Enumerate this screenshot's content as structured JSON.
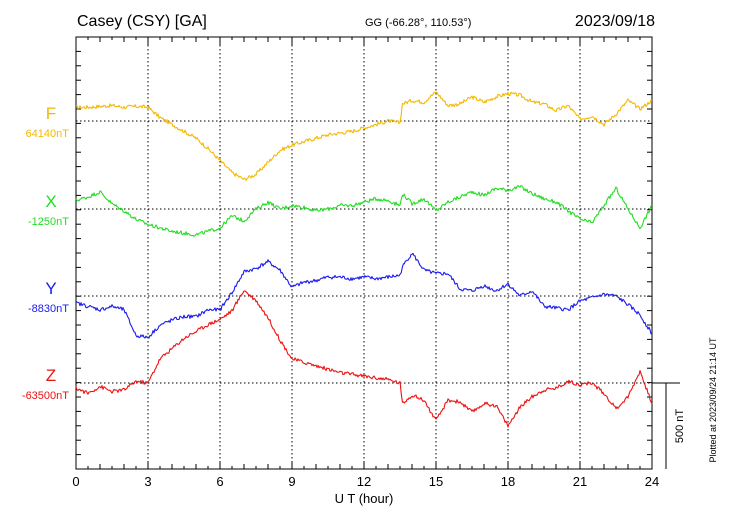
{
  "chart_data": {
    "type": "line",
    "station": "Casey (CSY)  [GA]",
    "coords": "GG (-66.28°, 110.53°)",
    "date": "2023/09/18",
    "xlabel": "U T (hour)",
    "xlim": [
      0,
      24
    ],
    "x_ticks": [
      "0",
      "3",
      "6",
      "9",
      "12",
      "15",
      "18",
      "21",
      "24"
    ],
    "scale_bar": {
      "label": "500 nT",
      "value_nT": 500
    },
    "footer": "Plotted at 2023/09/24 21:14 UT",
    "colors": {
      "F": "#f5b800",
      "X": "#22dd22",
      "Y": "#1a1aee",
      "Z": "#ee1111"
    },
    "series": [
      {
        "name": "F",
        "baseline_label": "64140nT",
        "baseline_nT": 64140,
        "hours": [
          0,
          0.5,
          1,
          1.5,
          2,
          2.5,
          3,
          3.5,
          4,
          4.5,
          5,
          5.5,
          6,
          6.5,
          7,
          7.5,
          8,
          8.5,
          9,
          9.5,
          10,
          10.5,
          11,
          11.5,
          12,
          12.5,
          13,
          13.5,
          13.6,
          14,
          14.5,
          15,
          15.5,
          16,
          16.5,
          17,
          17.5,
          18,
          18.5,
          19,
          19.5,
          20,
          20.5,
          21,
          21.5,
          22,
          22.5,
          23,
          23.5,
          24
        ],
        "values": [
          80,
          80,
          85,
          90,
          80,
          85,
          80,
          20,
          -20,
          -60,
          -100,
          -160,
          -230,
          -300,
          -340,
          -310,
          -240,
          -170,
          -140,
          -120,
          -100,
          -80,
          -70,
          -60,
          -40,
          -20,
          0,
          -10,
          100,
          120,
          110,
          170,
          90,
          100,
          140,
          110,
          140,
          160,
          150,
          110,
          100,
          60,
          90,
          10,
          30,
          -20,
          40,
          120,
          70,
          120
        ]
      },
      {
        "name": "X",
        "baseline_label": "-1250nT",
        "baseline_nT": -1250,
        "hours": [
          0,
          0.5,
          1,
          1.5,
          2,
          2.5,
          3,
          3.5,
          4,
          4.5,
          5,
          5.5,
          6,
          6.5,
          7,
          7.5,
          8,
          8.5,
          9,
          9.5,
          10,
          10.5,
          11,
          11.5,
          12,
          12.5,
          13,
          13.5,
          13.6,
          14,
          14.5,
          15,
          15.5,
          16,
          16.5,
          17,
          17.5,
          18,
          18.5,
          19,
          19.5,
          20,
          20.5,
          21,
          21.5,
          22,
          22.5,
          23,
          23.5,
          24
        ],
        "values": [
          50,
          70,
          100,
          30,
          -10,
          -60,
          -90,
          -110,
          -130,
          -140,
          -150,
          -130,
          -110,
          -40,
          -70,
          0,
          40,
          0,
          20,
          10,
          -10,
          0,
          20,
          20,
          40,
          60,
          50,
          20,
          90,
          30,
          60,
          -10,
          40,
          70,
          100,
          80,
          120,
          110,
          130,
          90,
          60,
          40,
          -10,
          -60,
          -80,
          20,
          120,
          0,
          -110,
          20
        ]
      },
      {
        "name": "Y",
        "baseline_label": "-8830nT",
        "baseline_nT": -8830,
        "hours": [
          0,
          0.5,
          1,
          1.5,
          2,
          2.5,
          3,
          3.5,
          4,
          4.5,
          5,
          5.5,
          6,
          6.5,
          7,
          7.5,
          8,
          8.5,
          9,
          9.5,
          10,
          10.5,
          11,
          11.5,
          12,
          12.5,
          13,
          13.5,
          13.6,
          14,
          14.5,
          15,
          15.5,
          16,
          16.5,
          17,
          17.5,
          18,
          18.5,
          19,
          19.5,
          20,
          20.5,
          21,
          21.5,
          22,
          22.5,
          23,
          23.5,
          24
        ],
        "values": [
          -40,
          -60,
          -80,
          -60,
          -80,
          -230,
          -240,
          -170,
          -140,
          -120,
          -120,
          -80,
          -80,
          20,
          140,
          160,
          200,
          150,
          50,
          80,
          90,
          110,
          110,
          100,
          110,
          100,
          110,
          120,
          170,
          250,
          150,
          130,
          130,
          40,
          30,
          60,
          30,
          70,
          0,
          30,
          -60,
          -70,
          -80,
          -30,
          -10,
          10,
          0,
          -50,
          -110,
          -220
        ]
      },
      {
        "name": "Z",
        "baseline_label": "-63500nT",
        "baseline_nT": -63500,
        "hours": [
          0,
          0.5,
          1,
          1.5,
          2,
          2.5,
          3,
          3.5,
          4,
          4.5,
          5,
          5.5,
          6,
          6.5,
          7,
          7.5,
          8,
          8.5,
          9,
          9.5,
          10,
          10.5,
          11,
          11.5,
          12,
          12.5,
          13,
          13.5,
          13.6,
          14,
          14.5,
          15,
          15.5,
          16,
          16.5,
          17,
          17.5,
          18,
          18.5,
          19,
          19.5,
          20,
          20.5,
          21,
          21.5,
          22,
          22.5,
          23,
          23.5,
          24
        ],
        "values": [
          -30,
          -60,
          -20,
          -50,
          -40,
          10,
          0,
          140,
          200,
          260,
          300,
          340,
          370,
          420,
          540,
          480,
          380,
          250,
          140,
          120,
          100,
          80,
          60,
          50,
          40,
          30,
          20,
          0,
          -120,
          -70,
          -100,
          -220,
          -100,
          -110,
          -170,
          -120,
          -130,
          -250,
          -140,
          -80,
          -40,
          -30,
          10,
          -10,
          0,
          -60,
          -150,
          -80,
          70,
          -120
        ]
      }
    ]
  }
}
